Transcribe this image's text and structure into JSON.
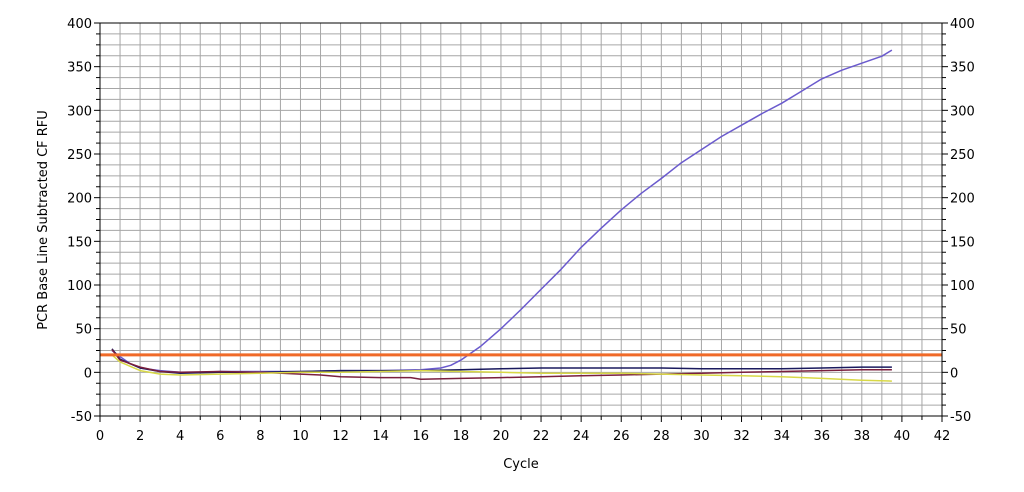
{
  "chart_data": {
    "type": "line",
    "title": "",
    "xlabel": "Cycle",
    "ylabel": "PCR Base Line Subtracted CF RFU",
    "xlim": [
      0,
      42
    ],
    "ylim": [
      -50,
      400
    ],
    "x_ticks": [
      0,
      2,
      4,
      6,
      8,
      10,
      12,
      14,
      16,
      18,
      20,
      22,
      24,
      26,
      28,
      30,
      32,
      34,
      36,
      38,
      40,
      42
    ],
    "y_ticks": [
      -50,
      0,
      50,
      100,
      150,
      200,
      250,
      300,
      350,
      400
    ],
    "grid": true,
    "threshold": {
      "value": 20,
      "color": "#f06a28"
    },
    "series": [
      {
        "color": "#6a5acd",
        "x": [
          0.6,
          1,
          1.5,
          2,
          3,
          4,
          5,
          6,
          8,
          10,
          12,
          14,
          16,
          17,
          17.5,
          18,
          18.5,
          19,
          19.5,
          20,
          21,
          22,
          23,
          24,
          25,
          26,
          27,
          28,
          29,
          30,
          31,
          32,
          33,
          34,
          35,
          36,
          37,
          38,
          39,
          39.5
        ],
        "y": [
          25,
          18,
          10,
          5,
          2,
          0,
          0,
          1,
          1,
          1,
          2,
          2,
          3,
          5,
          8,
          14,
          22,
          30,
          40,
          50,
          72,
          95,
          118,
          143,
          165,
          186,
          205,
          222,
          240,
          255,
          270,
          283,
          296,
          308,
          322,
          336,
          346,
          354,
          362,
          369
        ]
      },
      {
        "color": "#1a1a5e",
        "x": [
          0.6,
          1,
          2,
          3,
          4,
          6,
          8,
          10,
          12,
          14,
          16,
          18,
          20,
          22,
          24,
          26,
          28,
          30,
          32,
          34,
          36,
          38,
          39.5
        ],
        "y": [
          27,
          15,
          5,
          1,
          -1,
          0,
          0,
          1,
          2,
          2,
          2,
          3,
          4,
          5,
          5,
          5,
          5,
          4,
          4,
          4,
          5,
          6,
          6
        ]
      },
      {
        "color": "#7a1f3d",
        "x": [
          0.6,
          1,
          2,
          3,
          4,
          6,
          8,
          10,
          11,
          12,
          14,
          15.5,
          16,
          18,
          20,
          22,
          24,
          26,
          28,
          30,
          32,
          34,
          36,
          38,
          39.5
        ],
        "y": [
          26,
          14,
          6,
          1,
          0,
          1,
          0,
          -2,
          -3,
          -5,
          -6,
          -6,
          -8,
          -7,
          -6,
          -5,
          -4,
          -3,
          -2,
          -1,
          0,
          1,
          2,
          3,
          3
        ]
      },
      {
        "color": "#d8d846",
        "x": [
          0.6,
          1,
          2,
          3,
          4,
          6,
          8,
          10,
          12,
          14,
          16,
          18,
          20,
          22,
          24,
          26,
          28,
          30,
          32,
          34,
          36,
          38,
          39.5
        ],
        "y": [
          20,
          12,
          2,
          -2,
          -3,
          -2,
          -1,
          0,
          0,
          1,
          2,
          1,
          0,
          -1,
          -1,
          -1,
          -2,
          -3,
          -4,
          -5,
          -7,
          -9,
          -10
        ]
      }
    ]
  }
}
